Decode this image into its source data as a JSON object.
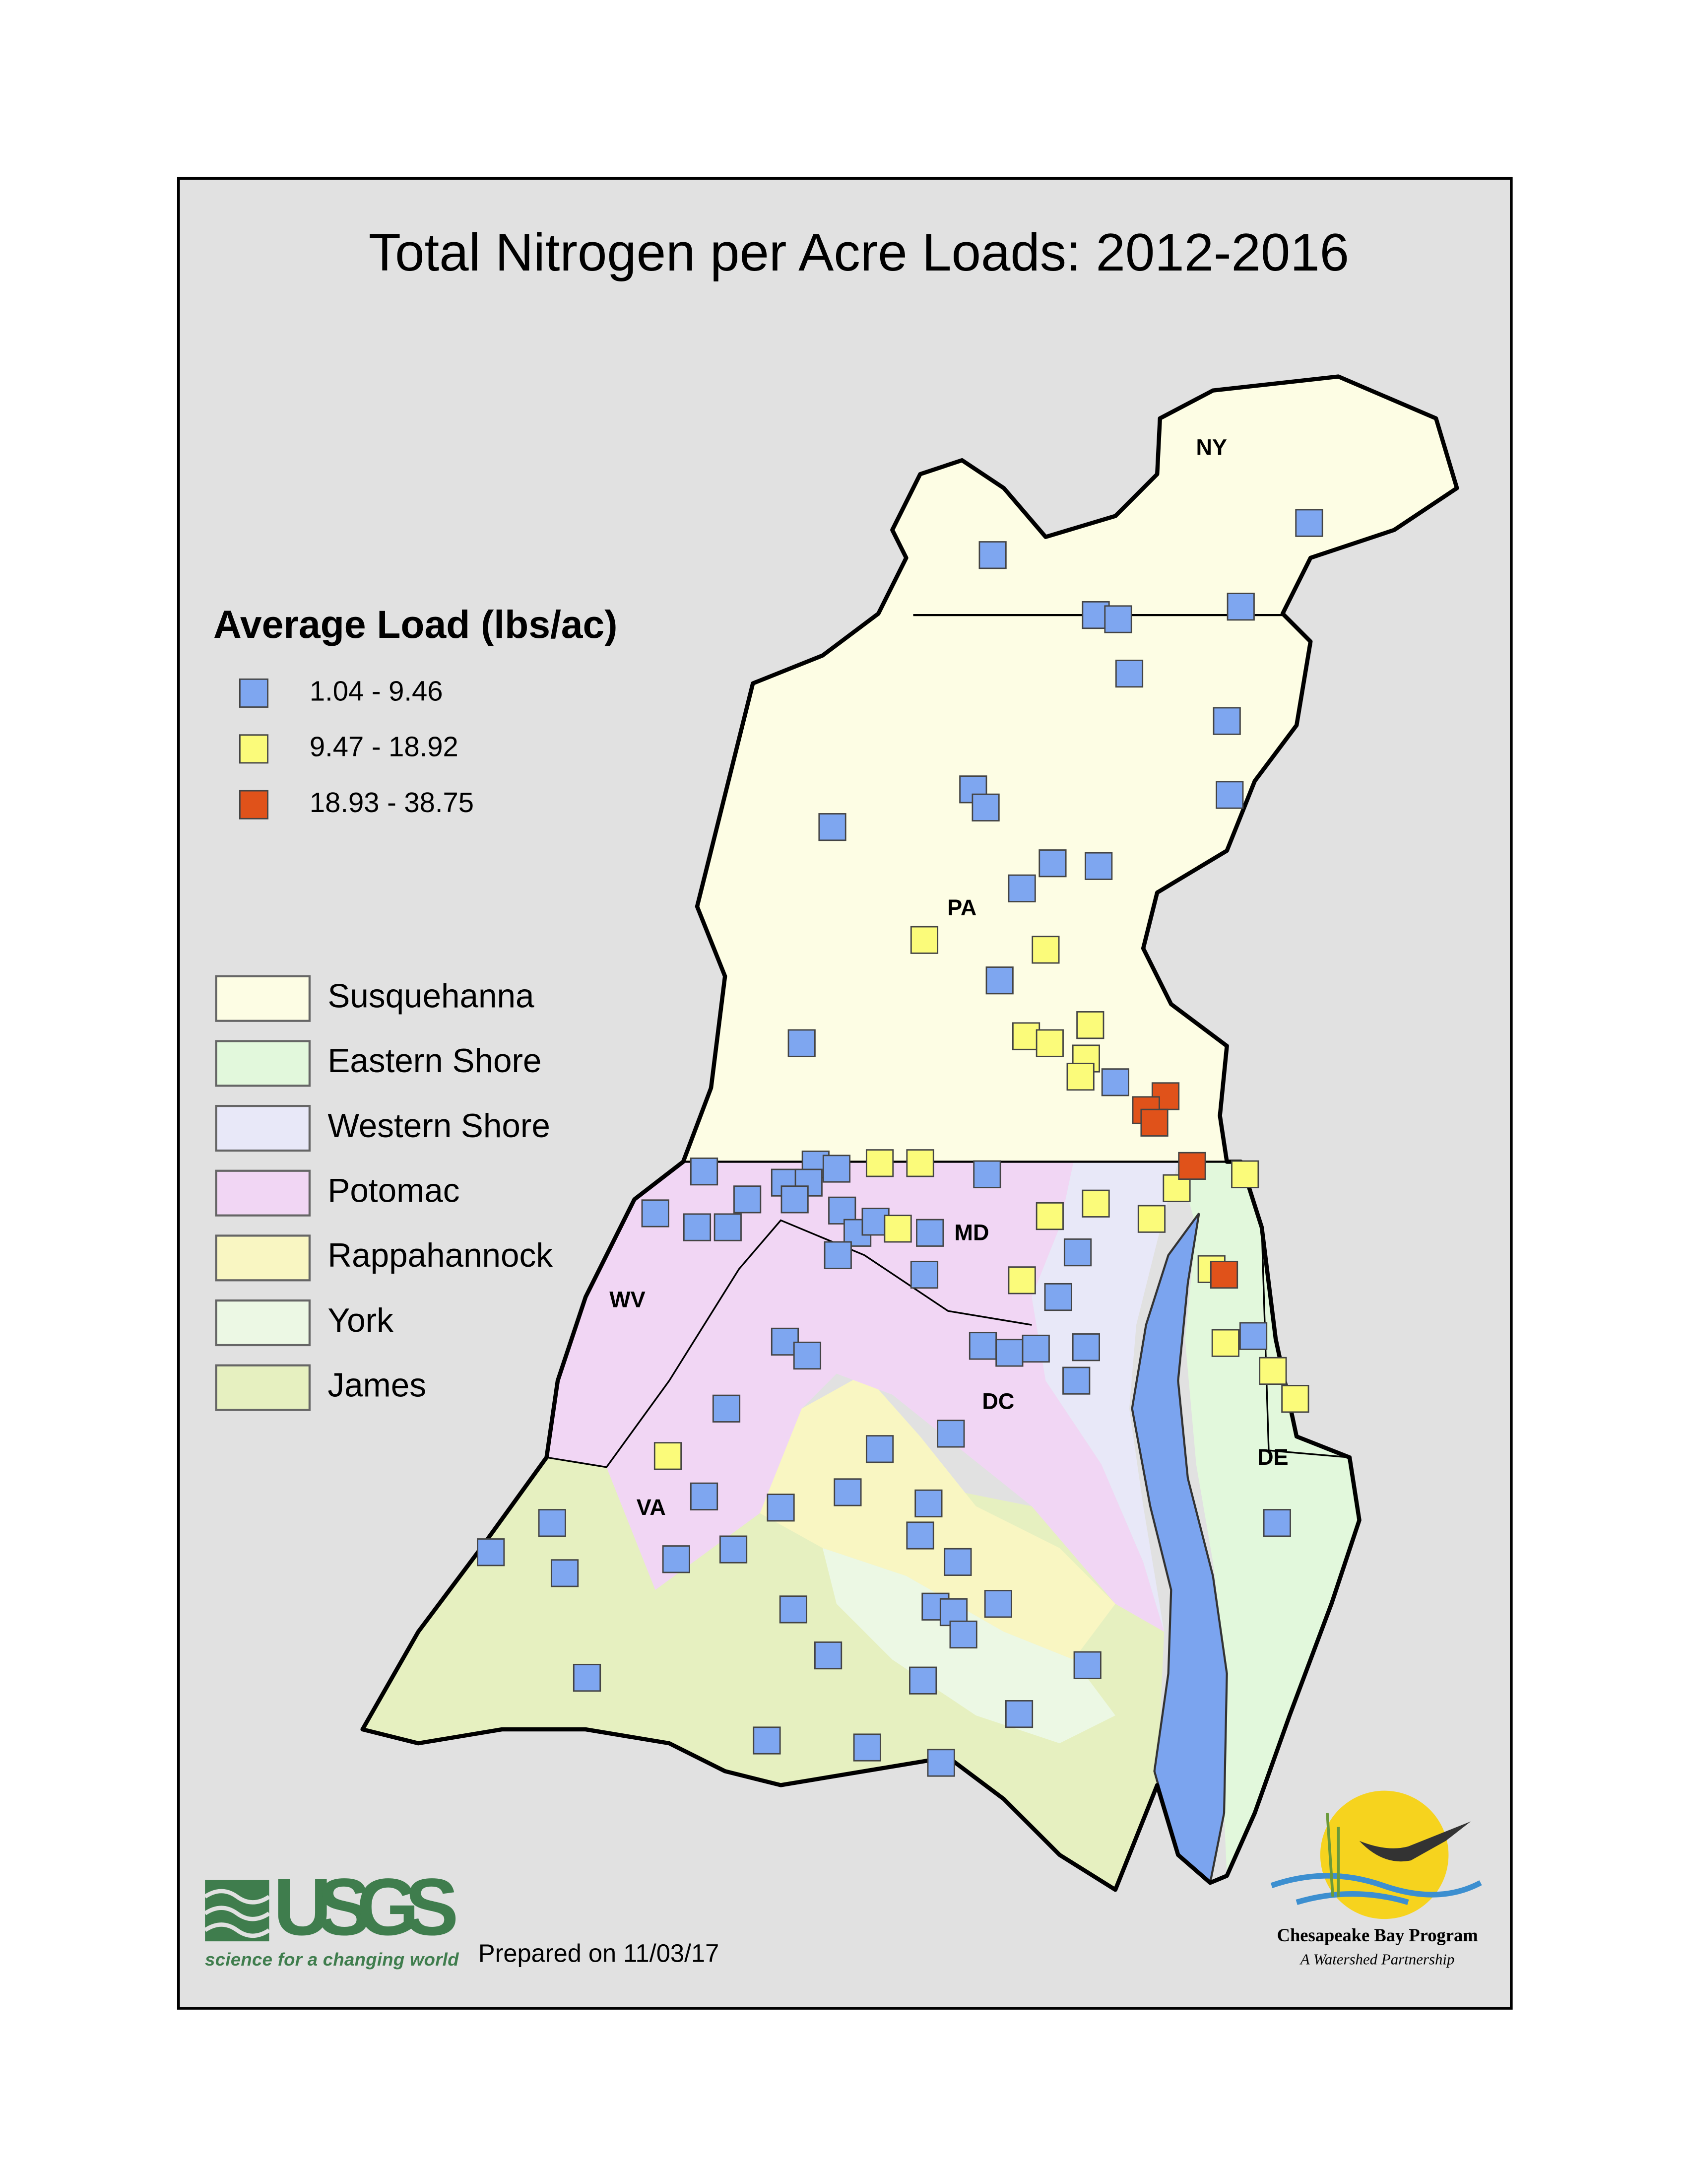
{
  "title": "Total Nitrogen per Acre Loads: 2012-2016",
  "load_legend": {
    "title": "Average Load (lbs/ac)",
    "classes": [
      {
        "label": "1.04 - 9.46",
        "color": "#7ea6f0"
      },
      {
        "label": "9.47 - 18.92",
        "color": "#fbfb7a"
      },
      {
        "label": "18.93 - 38.75",
        "color": "#e0521a"
      }
    ]
  },
  "basin_legend": [
    {
      "name": "Susquehanna",
      "color": "#fdfde4"
    },
    {
      "name": "Eastern Shore",
      "color": "#e2f8dc"
    },
    {
      "name": "Western Shore",
      "color": "#e8e8f8"
    },
    {
      "name": "Potomac",
      "color": "#f1d6f4"
    },
    {
      "name": "Rappahannock",
      "color": "#f9f6c2"
    },
    {
      "name": "York",
      "color": "#ecf8e4"
    },
    {
      "name": "James",
      "color": "#e6f0c0"
    }
  ],
  "state_labels": [
    "NY",
    "PA",
    "MD",
    "WV",
    "DC",
    "DE",
    "VA"
  ],
  "usgs": {
    "name": "USGS",
    "tagline": "science for a changing world"
  },
  "prepared": "Prepared on 11/03/17",
  "cbp": {
    "name": "Chesapeake Bay Program",
    "tagline": "A Watershed Partnership"
  }
}
